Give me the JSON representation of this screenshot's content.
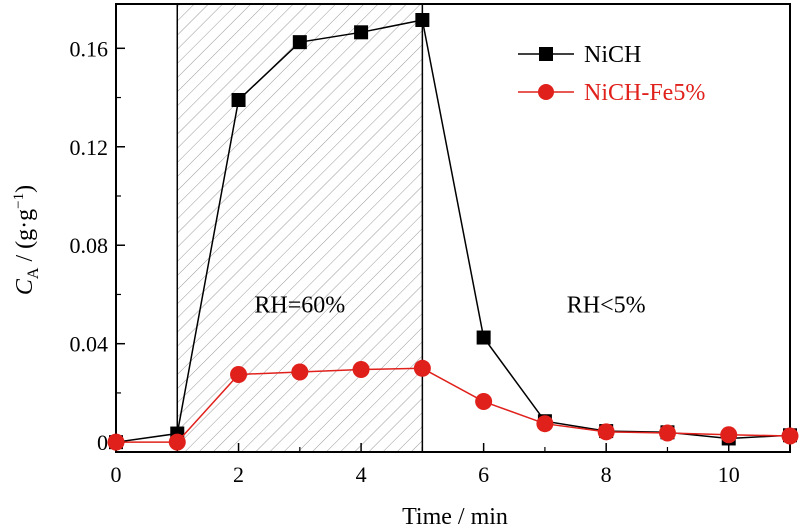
{
  "chart_data": {
    "type": "line",
    "xlabel": "Time / min",
    "ylabel": {
      "main": "C",
      "sub": "A",
      "unit_pre": " / (g·g",
      "unit_sup": "−1",
      "unit_post": ")"
    },
    "xlim": [
      0,
      11
    ],
    "ylim": [
      -0.004,
      0.178
    ],
    "xticks": [
      0,
      2,
      4,
      6,
      8,
      10
    ],
    "xtick_labels": [
      "0",
      "2",
      "4",
      "6",
      "8",
      "10"
    ],
    "yticks": [
      0,
      0.04,
      0.08,
      0.12,
      0.16
    ],
    "ytick_labels": [
      "0",
      "0.04",
      "0.08",
      "0.12",
      "0.16"
    ],
    "grid": false,
    "legend_position": "top-right",
    "shaded_region": {
      "x": [
        1,
        5
      ],
      "pattern": "diagonal-hatch"
    },
    "annotations": [
      {
        "text": "RH=60%",
        "x": 3.0,
        "y": 0.056
      },
      {
        "text": "RH<5%",
        "x": 8.0,
        "y": 0.056
      }
    ],
    "series": [
      {
        "name": "NiCH",
        "color": "#000000",
        "marker": "square",
        "x": [
          0,
          1,
          2,
          3,
          4,
          5,
          6,
          7,
          8,
          9,
          10,
          11
        ],
        "y": [
          0.0,
          0.0035,
          0.139,
          0.1625,
          0.1665,
          0.1715,
          0.0425,
          0.0085,
          0.0045,
          0.004,
          0.0015,
          0.0028
        ]
      },
      {
        "name": "NiCH-Fe5%",
        "color": "#e0201b",
        "marker": "circle",
        "x": [
          0,
          1,
          2,
          3,
          4,
          5,
          6,
          7,
          8,
          9,
          10,
          11
        ],
        "y": [
          0.0,
          0.0,
          0.0275,
          0.0285,
          0.0295,
          0.03,
          0.0165,
          0.0075,
          0.0042,
          0.0037,
          0.003,
          0.0025
        ]
      }
    ]
  }
}
